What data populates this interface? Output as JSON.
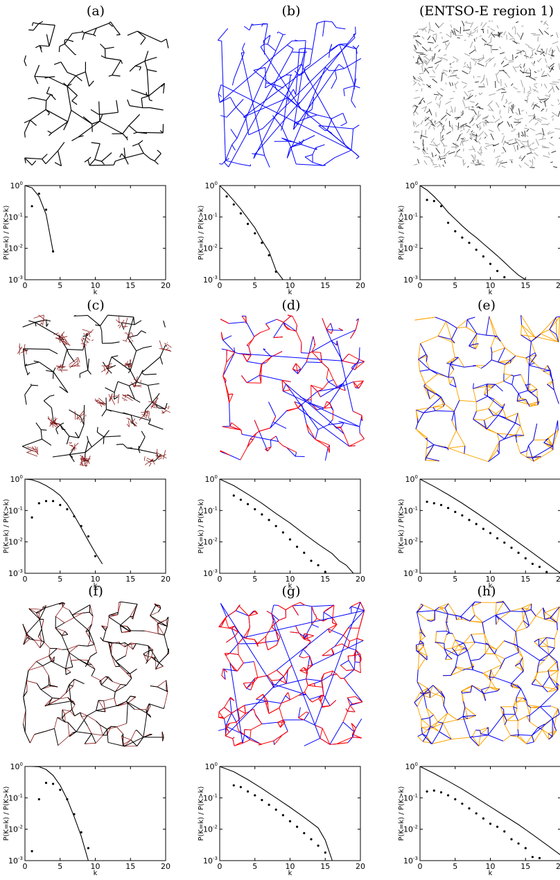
{
  "colors": {
    "tree": "#000000",
    "blue": "#0000ff",
    "red": "#ff0000",
    "orange": "#ffa500",
    "brown": "#8b1a1a",
    "grid_gray": "#555555"
  },
  "panels": [
    {
      "id": "a",
      "title": "(a)",
      "style": "tree"
    },
    {
      "id": "b",
      "title": "(b)",
      "style": "blue-random"
    },
    {
      "id": "entsoe",
      "title": "(ENTSO-E region 1)",
      "style": "gray-map"
    },
    {
      "id": "c",
      "title": "(c)",
      "style": "tree-clusters"
    },
    {
      "id": "d",
      "title": "(d)",
      "style": "blue-red"
    },
    {
      "id": "e",
      "title": "(e)",
      "style": "blue-orange"
    },
    {
      "id": "f",
      "title": "(f)",
      "style": "cells-brown"
    },
    {
      "id": "g",
      "title": "(g)",
      "style": "blue-red-dense"
    },
    {
      "id": "h",
      "title": "(h)",
      "style": "blue-orange-dense"
    }
  ],
  "chart_data": [
    {
      "type": "scatter",
      "panel": "a",
      "xlabel": "k",
      "ylabel": "P(K=k) / P(K>k)",
      "xlim": [
        0,
        20
      ],
      "ylim": [
        0.001,
        1
      ],
      "yscale": "log",
      "series": [
        {
          "values_x": [
            1,
            2,
            3,
            4
          ],
          "values_y": [
            0.22,
            0.55,
            0.17,
            0.008
          ]
        },
        {
          "values_x": [
            0,
            1,
            2,
            3,
            4
          ],
          "values_y": [
            1.0,
            0.85,
            0.45,
            0.12,
            0.008
          ]
        }
      ]
    },
    {
      "type": "scatter",
      "panel": "b",
      "xlabel": "k",
      "ylabel": "P(K=k) / P(K>k)",
      "xlim": [
        0,
        20
      ],
      "ylim": [
        0.001,
        1
      ],
      "yscale": "log",
      "series": [
        {
          "values_x": [
            1,
            2,
            3,
            4,
            5,
            6,
            7,
            8
          ],
          "values_y": [
            0.45,
            0.25,
            0.13,
            0.06,
            0.03,
            0.015,
            0.006,
            0.0018
          ]
        },
        {
          "values_x": [
            0,
            1,
            2,
            3,
            4,
            5,
            6,
            7,
            8,
            9
          ],
          "values_y": [
            1.0,
            0.6,
            0.33,
            0.18,
            0.09,
            0.045,
            0.018,
            0.008,
            0.002,
            0.001
          ]
        }
      ]
    },
    {
      "type": "scatter",
      "panel": "entsoe",
      "xlabel": "k",
      "ylabel": "P(K=k) / P(K>k)",
      "xlim": [
        0,
        20
      ],
      "ylim": [
        0.001,
        1
      ],
      "yscale": "log",
      "series": [
        {
          "values_x": [
            1,
            2,
            3,
            4,
            5,
            6,
            7,
            8,
            9,
            10,
            11,
            12
          ],
          "values_y": [
            0.35,
            0.32,
            0.22,
            0.065,
            0.035,
            0.022,
            0.015,
            0.009,
            0.0055,
            0.0032,
            0.0019,
            0.0012
          ]
        },
        {
          "values_x": [
            0,
            1,
            2,
            3,
            4,
            5,
            6,
            7,
            8,
            9,
            10,
            11,
            12,
            13,
            14,
            15
          ],
          "values_y": [
            1.0,
            0.72,
            0.45,
            0.26,
            0.14,
            0.085,
            0.052,
            0.033,
            0.022,
            0.014,
            0.009,
            0.0058,
            0.0036,
            0.0022,
            0.0014,
            0.001
          ]
        }
      ]
    },
    {
      "type": "scatter",
      "panel": "c",
      "xlabel": "k",
      "ylabel": "P(K=k) / P(K>k)",
      "xlim": [
        0,
        20
      ],
      "ylim": [
        0.001,
        1
      ],
      "yscale": "log",
      "series": [
        {
          "values_x": [
            1,
            2,
            3,
            4,
            5,
            6,
            7,
            8,
            9,
            10
          ],
          "values_y": [
            0.06,
            0.17,
            0.2,
            0.2,
            0.15,
            0.11,
            0.065,
            0.032,
            0.015,
            0.0035
          ]
        },
        {
          "values_x": [
            0,
            1,
            2,
            3,
            4,
            5,
            6,
            7,
            8,
            9,
            10,
            11
          ],
          "values_y": [
            1.0,
            0.95,
            0.8,
            0.62,
            0.45,
            0.3,
            0.16,
            0.07,
            0.028,
            0.011,
            0.0045,
            0.002
          ]
        }
      ]
    },
    {
      "type": "scatter",
      "panel": "d",
      "xlabel": "k",
      "ylabel": "P(K=k) / P(K>k)",
      "xlim": [
        0,
        20
      ],
      "ylim": [
        0.001,
        1
      ],
      "yscale": "log",
      "series": [
        {
          "values_x": [
            2,
            3,
            4,
            5,
            6,
            7,
            8,
            9,
            10,
            11,
            12,
            13,
            14,
            15
          ],
          "values_y": [
            0.3,
            0.22,
            0.16,
            0.11,
            0.075,
            0.05,
            0.032,
            0.02,
            0.012,
            0.007,
            0.0045,
            0.0025,
            0.0018,
            0.0011
          ]
        },
        {
          "values_x": [
            0,
            2,
            4,
            6,
            8,
            10,
            12,
            14,
            16,
            17,
            18,
            19
          ],
          "values_y": [
            1.0,
            0.62,
            0.33,
            0.17,
            0.08,
            0.04,
            0.018,
            0.0085,
            0.0042,
            0.0025,
            0.0018,
            0.001
          ]
        }
      ]
    },
    {
      "type": "scatter",
      "panel": "e",
      "xlabel": "k",
      "ylabel": "P(K=k) / P(K>k)",
      "xlim": [
        0,
        20
      ],
      "ylim": [
        0.001,
        1
      ],
      "yscale": "log",
      "series": [
        {
          "values_x": [
            1,
            2,
            3,
            4,
            5,
            6,
            7,
            8,
            9,
            10,
            11,
            12,
            13,
            14,
            15,
            16,
            17,
            18
          ],
          "values_y": [
            0.19,
            0.17,
            0.15,
            0.12,
            0.09,
            0.07,
            0.05,
            0.037,
            0.026,
            0.019,
            0.013,
            0.0095,
            0.0065,
            0.0045,
            0.003,
            0.002,
            0.0016,
            0.0011
          ]
        },
        {
          "values_x": [
            0,
            2,
            4,
            6,
            8,
            10,
            12,
            14,
            16,
            18,
            20
          ],
          "values_y": [
            1.0,
            0.58,
            0.32,
            0.17,
            0.085,
            0.042,
            0.02,
            0.0095,
            0.0045,
            0.0021,
            0.001
          ]
        }
      ]
    },
    {
      "type": "scatter",
      "panel": "f",
      "xlabel": "k",
      "ylabel": "P(K=k) / P(K>k)",
      "xlim": [
        0,
        20
      ],
      "ylim": [
        0.001,
        1
      ],
      "yscale": "log",
      "series": [
        {
          "values_x": [
            1,
            2,
            3,
            4,
            5,
            6,
            7,
            8,
            9
          ],
          "values_y": [
            0.002,
            0.09,
            0.3,
            0.28,
            0.18,
            0.09,
            0.03,
            0.008,
            0.0025
          ]
        },
        {
          "values_x": [
            0,
            1,
            2,
            3,
            4,
            5,
            6,
            7,
            8,
            9
          ],
          "values_y": [
            1.0,
            1.0,
            0.98,
            0.8,
            0.52,
            0.25,
            0.09,
            0.025,
            0.006,
            0.001
          ]
        }
      ]
    },
    {
      "type": "scatter",
      "panel": "g",
      "xlabel": "k",
      "ylabel": "P(K=k) / P(K>k)",
      "xlim": [
        0,
        20
      ],
      "ylim": [
        0.001,
        1
      ],
      "yscale": "log",
      "series": [
        {
          "values_x": [
            2,
            3,
            4,
            5,
            6,
            7,
            8,
            9,
            10,
            11,
            12,
            13,
            14,
            15
          ],
          "values_y": [
            0.25,
            0.22,
            0.16,
            0.12,
            0.085,
            0.06,
            0.042,
            0.028,
            0.018,
            0.012,
            0.0075,
            0.0048,
            0.003,
            0.0018
          ]
        },
        {
          "values_x": [
            0,
            2,
            4,
            6,
            8,
            10,
            12,
            14,
            15,
            16
          ],
          "values_y": [
            1.0,
            0.68,
            0.38,
            0.2,
            0.1,
            0.05,
            0.024,
            0.011,
            0.0045,
            0.001
          ]
        }
      ]
    },
    {
      "type": "scatter",
      "panel": "h",
      "xlabel": "k",
      "ylabel": "P(K=k) / P(K>k)",
      "xlim": [
        0,
        20
      ],
      "ylim": [
        0.001,
        1
      ],
      "yscale": "log",
      "series": [
        {
          "values_x": [
            1,
            2,
            3,
            4,
            5,
            6,
            7,
            8,
            9,
            10,
            11,
            12,
            13,
            14,
            15,
            16,
            17
          ],
          "values_y": [
            0.16,
            0.17,
            0.15,
            0.12,
            0.09,
            0.065,
            0.046,
            0.032,
            0.022,
            0.015,
            0.012,
            0.0085,
            0.0048,
            0.0035,
            0.0025,
            0.0013,
            0.0012
          ]
        },
        {
          "values_x": [
            0,
            2,
            4,
            6,
            8,
            10,
            12,
            14,
            16,
            18,
            20
          ],
          "values_y": [
            1.0,
            0.6,
            0.34,
            0.19,
            0.1,
            0.052,
            0.027,
            0.014,
            0.0068,
            0.0032,
            0.0015
          ]
        }
      ]
    }
  ]
}
